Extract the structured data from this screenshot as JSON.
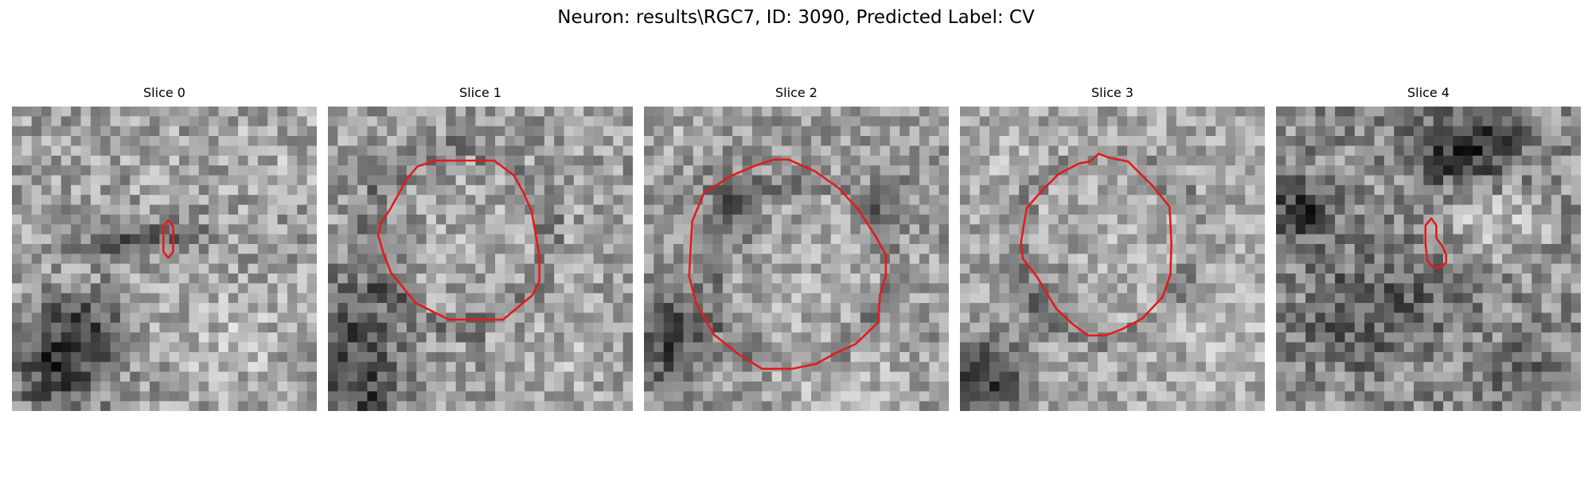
{
  "figure": {
    "title": "Neuron: results\\RGC7, ID: 3090, Predicted Label: CV",
    "contour_color": "#e41a1c",
    "colormap": "grayscale"
  },
  "slices": [
    {
      "title": "Slice 0",
      "contour": "small vertical elongated outline near center-right"
    },
    {
      "title": "Slice 1",
      "contour": "large polygonal cell outline"
    },
    {
      "title": "Slice 2",
      "contour": "large polygonal cell outline"
    },
    {
      "title": "Slice 3",
      "contour": "large polygonal cell outline"
    },
    {
      "title": "Slice 4",
      "contour": "small hooked outline near center"
    }
  ]
}
